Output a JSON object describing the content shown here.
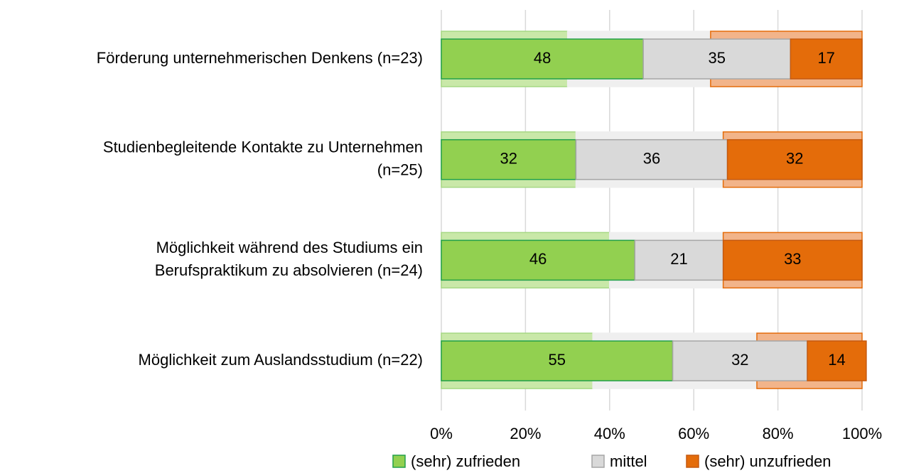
{
  "chart_data": {
    "type": "stacked_bar_horizontal",
    "categories": [
      [
        "Förderung unternehmerischen Denkens (n=23)"
      ],
      [
        "Studienbegleitende Kontakte zu Unternehmen",
        "(n=25)"
      ],
      [
        "Möglichkeit während des Studiums ein",
        "Berufspraktikum zu absolvieren (n=24)"
      ],
      [
        "Möglichkeit zum Auslandsstudium (n=22)"
      ]
    ],
    "series": [
      {
        "name": "(sehr) zufrieden",
        "color": "#92d050",
        "border": "#22a04a",
        "values": [
          48,
          32,
          46,
          55
        ]
      },
      {
        "name": "mittel",
        "color": "#d9d9d9",
        "border": "#a6a6a6",
        "values": [
          35,
          36,
          21,
          32
        ]
      },
      {
        "name": "(sehr) unzufrieden",
        "color": "#e46c0a",
        "border": "#c55a11",
        "values": [
          17,
          32,
          33,
          14
        ]
      }
    ],
    "background_series": [
      {
        "color": "#c9e8a8",
        "border": "#a6d884",
        "values": [
          30,
          32,
          40,
          36
        ]
      },
      {
        "color": "#efefef",
        "border": "#efefef",
        "values": [
          34,
          35,
          27,
          39
        ]
      },
      {
        "color": "#f2b48a",
        "border": "#e46c0a",
        "values": [
          36,
          33,
          33,
          25
        ]
      }
    ],
    "xlim": [
      0,
      100
    ],
    "xticks": [
      {
        "value": 0,
        "label": "0%"
      },
      {
        "value": 20,
        "label": "20%"
      },
      {
        "value": 40,
        "label": "40%"
      },
      {
        "value": 60,
        "label": "60%"
      },
      {
        "value": 80,
        "label": "80%"
      },
      {
        "value": 100,
        "label": "100%"
      }
    ],
    "grid": true,
    "legend": "bottom"
  }
}
